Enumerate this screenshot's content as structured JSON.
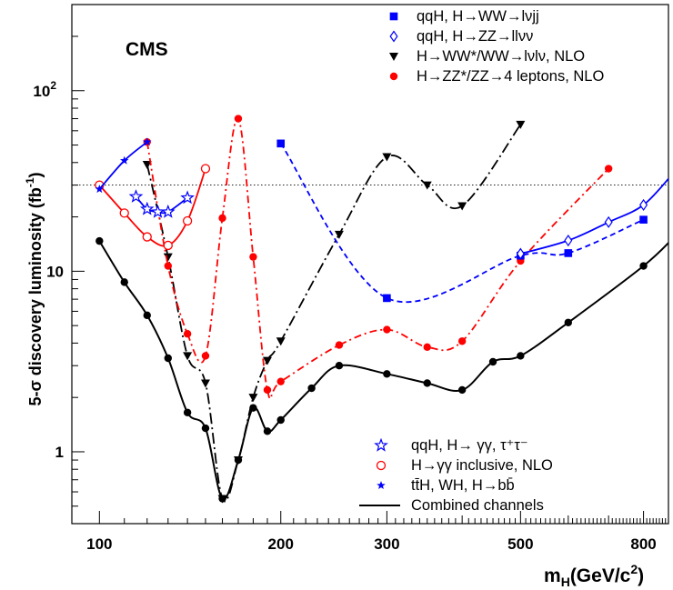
{
  "chart_data": {
    "type": "line",
    "label": "CMS",
    "xlabel_main": "m",
    "xlabel_sub": "H",
    "xlabel_unit": "(GeV/c",
    "xlabel_exp": "2",
    "xlabel_close": ")",
    "ylabel_main": "5-σ discovery luminosity (fb",
    "ylabel_exp": "-1",
    "ylabel_close": ")",
    "xscale": "log",
    "yscale": "log",
    "xlim": [
      90,
      880
    ],
    "ylim": [
      0.4,
      300
    ],
    "xticks": [
      {
        "v": 100,
        "label": "100"
      },
      {
        "v": 200,
        "label": "200"
      },
      {
        "v": 300,
        "label": "300"
      },
      {
        "v": 500,
        "label": "500"
      },
      {
        "v": 800,
        "label": "800"
      }
    ],
    "yticks": [
      {
        "v": 1,
        "label": "1"
      },
      {
        "v": 10,
        "label": "10"
      },
      {
        "v": 100,
        "label": "10",
        "exp": "2"
      }
    ],
    "reference_line": 30,
    "legend_top": [
      {
        "text": "qqH,  H→WW→lνjj",
        "series": "ww_lvjj"
      },
      {
        "text": "qqH,  H→ZZ→llνν",
        "series": "zz_llvv"
      },
      {
        "text": "H→WW*/WW→lνlν, NLO",
        "series": "ww_lvlv"
      },
      {
        "text": "H→ZZ*/ZZ→4 leptons, NLO",
        "series": "zz_4l"
      }
    ],
    "legend_bottom": [
      {
        "text": "qqH,  H→ γγ, τ⁺τ⁻",
        "series": "qqh_gg_tt"
      },
      {
        "text": "H→γγ inclusive, NLO",
        "series": "gg_incl"
      },
      {
        "text": "tt̄H, WH, H→bb̄",
        "series": "tth_bb"
      },
      {
        "text": "Combined channels",
        "series": "combined"
      }
    ],
    "series": [
      {
        "id": "combined",
        "color": "#000000",
        "marker": "dot",
        "dash": "",
        "x": [
          100,
          110,
          120,
          130,
          140,
          150,
          160,
          170,
          180,
          190,
          200,
          225,
          250,
          300,
          350,
          400,
          450,
          500,
          600,
          800,
          900
        ],
        "y": [
          14.7,
          8.7,
          5.7,
          3.3,
          1.65,
          1.35,
          0.55,
          0.9,
          1.75,
          1.3,
          1.5,
          2.25,
          3.0,
          2.7,
          2.4,
          2.2,
          3.15,
          3.4,
          5.2,
          10.7,
          15.5
        ]
      },
      {
        "id": "ww_lvlv",
        "color": "#000000",
        "marker": "triangle-down",
        "dash": "12,4,2,4",
        "x": [
          120,
          130,
          140,
          150,
          160,
          170,
          180,
          190,
          200,
          250,
          300,
          350,
          400,
          500
        ],
        "y": [
          39,
          12,
          3.4,
          2.4,
          0.55,
          0.9,
          2.0,
          3.2,
          4.1,
          16,
          43,
          30,
          23,
          65
        ]
      },
      {
        "id": "zz_4l",
        "color": "#ff0000",
        "marker": "dot",
        "dash": "8,4,2,4",
        "x": [
          120,
          130,
          140,
          150,
          160,
          170,
          180,
          190,
          200,
          250,
          300,
          350,
          400,
          500,
          700
        ],
        "y": [
          52,
          10.7,
          4.5,
          3.4,
          19.7,
          70,
          12,
          2.2,
          2.45,
          3.9,
          4.75,
          3.8,
          4.1,
          11.4,
          37
        ]
      },
      {
        "id": "ww_lvjj",
        "color": "#0000ff",
        "marker": "square",
        "dash": "6,4",
        "x": [
          200,
          300,
          500,
          600,
          800
        ],
        "y": [
          51,
          7.1,
          12.2,
          12.6,
          19.3
        ]
      },
      {
        "id": "zz_llvv",
        "color": "#0000ff",
        "marker": "diamond-open",
        "dash": "",
        "x": [
          500,
          600,
          700,
          800,
          900
        ],
        "y": [
          12.5,
          14.8,
          18.7,
          23.3,
          35.5
        ]
      },
      {
        "id": "qqh_gg_tt",
        "color": "#0000ff",
        "marker": "star-open",
        "dash": "",
        "x": [
          115,
          120,
          125,
          130,
          140
        ],
        "y": [
          25.9,
          22.1,
          21.3,
          21.3,
          25.5
        ]
      },
      {
        "id": "gg_incl",
        "color": "#ff0000",
        "marker": "circle-open",
        "dash": "",
        "x": [
          100,
          110,
          120,
          130,
          140,
          150
        ],
        "y": [
          30,
          21,
          15.5,
          13.9,
          19,
          37
        ]
      },
      {
        "id": "tth_bb",
        "color": "#0000ff",
        "marker": "star",
        "dash": "",
        "x": [
          100,
          110,
          120
        ],
        "y": [
          28.5,
          41,
          52
        ]
      }
    ]
  }
}
